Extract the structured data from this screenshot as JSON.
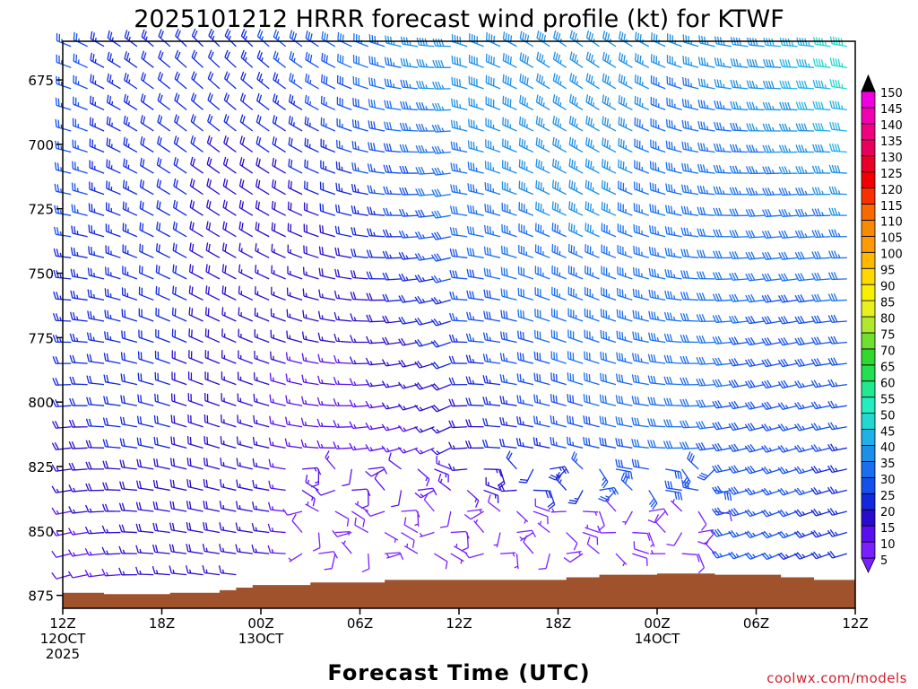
{
  "chart_data": {
    "type": "wind-barb-profile",
    "title": "2025101212 HRRR forecast wind profile (kt) for KTWF",
    "xlabel": "Forecast Time (UTC)",
    "ylabel": "",
    "credit": "coolwx.com/models",
    "y_range_hpa": [
      660,
      880
    ],
    "y_ticks": [
      {
        "v": 675,
        "label": "675"
      },
      {
        "v": 700,
        "label": "700"
      },
      {
        "v": 725,
        "label": "725"
      },
      {
        "v": 750,
        "label": "750"
      },
      {
        "v": 775,
        "label": "775"
      },
      {
        "v": 800,
        "label": "800"
      },
      {
        "v": 825,
        "label": "825"
      },
      {
        "v": 850,
        "label": "850"
      },
      {
        "v": 875,
        "label": "875"
      }
    ],
    "x_range_hours": [
      0,
      48
    ],
    "x_ticks": [
      {
        "h": 0,
        "lines": [
          "12Z",
          "12OCT",
          "2025"
        ]
      },
      {
        "h": 6,
        "lines": [
          "18Z"
        ]
      },
      {
        "h": 12,
        "lines": [
          "00Z",
          "13OCT"
        ]
      },
      {
        "h": 18,
        "lines": [
          "06Z"
        ]
      },
      {
        "h": 24,
        "lines": [
          "12Z"
        ]
      },
      {
        "h": 30,
        "lines": [
          "18Z"
        ]
      },
      {
        "h": 36,
        "lines": [
          "00Z",
          "14OCT"
        ]
      },
      {
        "h": 42,
        "lines": [
          "06Z"
        ]
      },
      {
        "h": 48,
        "lines": [
          "12Z"
        ]
      }
    ],
    "terrain_hpa": [
      {
        "h": 0,
        "p": 874
      },
      {
        "h": 2.5,
        "p": 874.5
      },
      {
        "h": 6.5,
        "p": 874
      },
      {
        "h": 9.5,
        "p": 873
      },
      {
        "h": 10.5,
        "p": 872
      },
      {
        "h": 11.5,
        "p": 871
      },
      {
        "h": 15,
        "p": 870
      },
      {
        "h": 19.5,
        "p": 869
      },
      {
        "h": 30.5,
        "p": 868
      },
      {
        "h": 32.5,
        "p": 867
      },
      {
        "h": 36,
        "p": 866.5
      },
      {
        "h": 39.5,
        "p": 867
      },
      {
        "h": 43.5,
        "p": 868
      },
      {
        "h": 45.5,
        "p": 869
      },
      {
        "h": 48,
        "p": 869
      }
    ],
    "wind_speed_colorbar_kt": {
      "values": [
        5,
        10,
        15,
        20,
        25,
        30,
        35,
        40,
        45,
        50,
        55,
        60,
        65,
        70,
        75,
        80,
        85,
        90,
        95,
        100,
        105,
        110,
        115,
        120,
        125,
        130,
        135,
        140,
        145,
        150
      ],
      "colors": [
        "#7a1fff",
        "#5a10ee",
        "#2a0ccc",
        "#1228dd",
        "#1450ee",
        "#1a6ff0",
        "#1c8fe6",
        "#22b0e8",
        "#22d8d0",
        "#22eec0",
        "#22e890",
        "#22e050",
        "#30d830",
        "#70e030",
        "#b0e830",
        "#e8f020",
        "#f8f000",
        "#ffd800",
        "#ffb800",
        "#ff9a00",
        "#f88a00",
        "#f86a00",
        "#f83000",
        "#f00000",
        "#e8002a",
        "#e8005a",
        "#ee0080",
        "#f000b0",
        "#f000e0",
        "#000000"
      ]
    },
    "wind_profile_model": {
      "description": "Barbs every 1 forecast hour at ~8 hPa spacing; direction and speed vary from west-northwesterly aloft to light variable near the surface",
      "times_hours_step": 1,
      "levels_hpa_step": 8.2
    }
  }
}
